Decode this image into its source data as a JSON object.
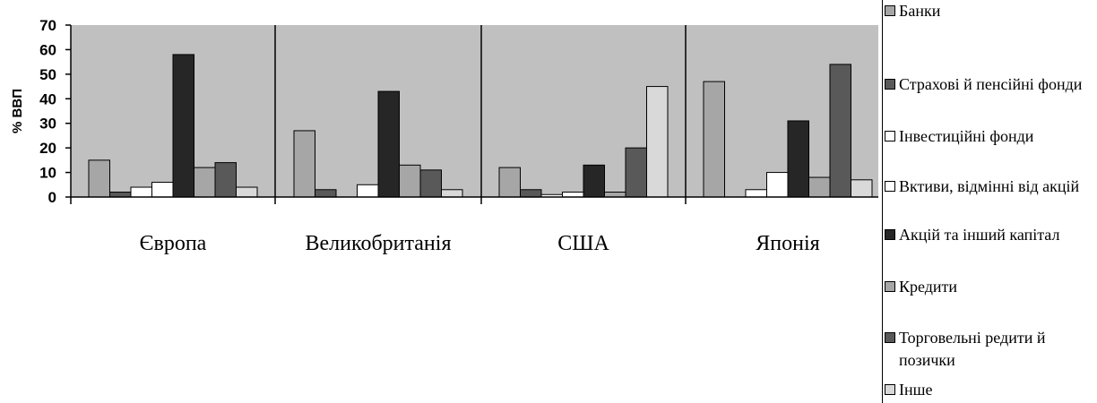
{
  "chart_data": {
    "type": "bar",
    "ylabel": "% ВВП",
    "ylim": [
      0,
      70
    ],
    "yticks": [
      0,
      10,
      20,
      30,
      40,
      50,
      60,
      70
    ],
    "grid": false,
    "legend_position": "right",
    "categories": [
      "Європа",
      "Великобританія",
      "США",
      "Японія"
    ],
    "series": [
      {
        "name": "Банки",
        "color": "#a6a6a6",
        "values": [
          15,
          27,
          12,
          47
        ]
      },
      {
        "name": "Страхові й пенсійні фонди",
        "color": "#595959",
        "values": [
          2,
          3,
          3,
          0
        ]
      },
      {
        "name": "Інвестиційні фонди",
        "color": "#ffffff",
        "values": [
          4,
          0,
          1,
          3
        ]
      },
      {
        "name": "Вктиви, відмінні від акцій",
        "color": "#ffffff",
        "values": [
          6,
          5,
          2,
          10
        ]
      },
      {
        "name": "Акцій та інший капітал",
        "color": "#262626",
        "values": [
          58,
          43,
          13,
          31
        ]
      },
      {
        "name": "Кредити",
        "color": "#a6a6a6",
        "values": [
          12,
          13,
          2,
          8
        ]
      },
      {
        "name": "Торговельні редити й позички",
        "color": "#595959",
        "values": [
          14,
          11,
          20,
          54
        ]
      },
      {
        "name": "Інше",
        "color": "#d9d9d9",
        "values": [
          4,
          3,
          45,
          7
        ]
      }
    ]
  }
}
